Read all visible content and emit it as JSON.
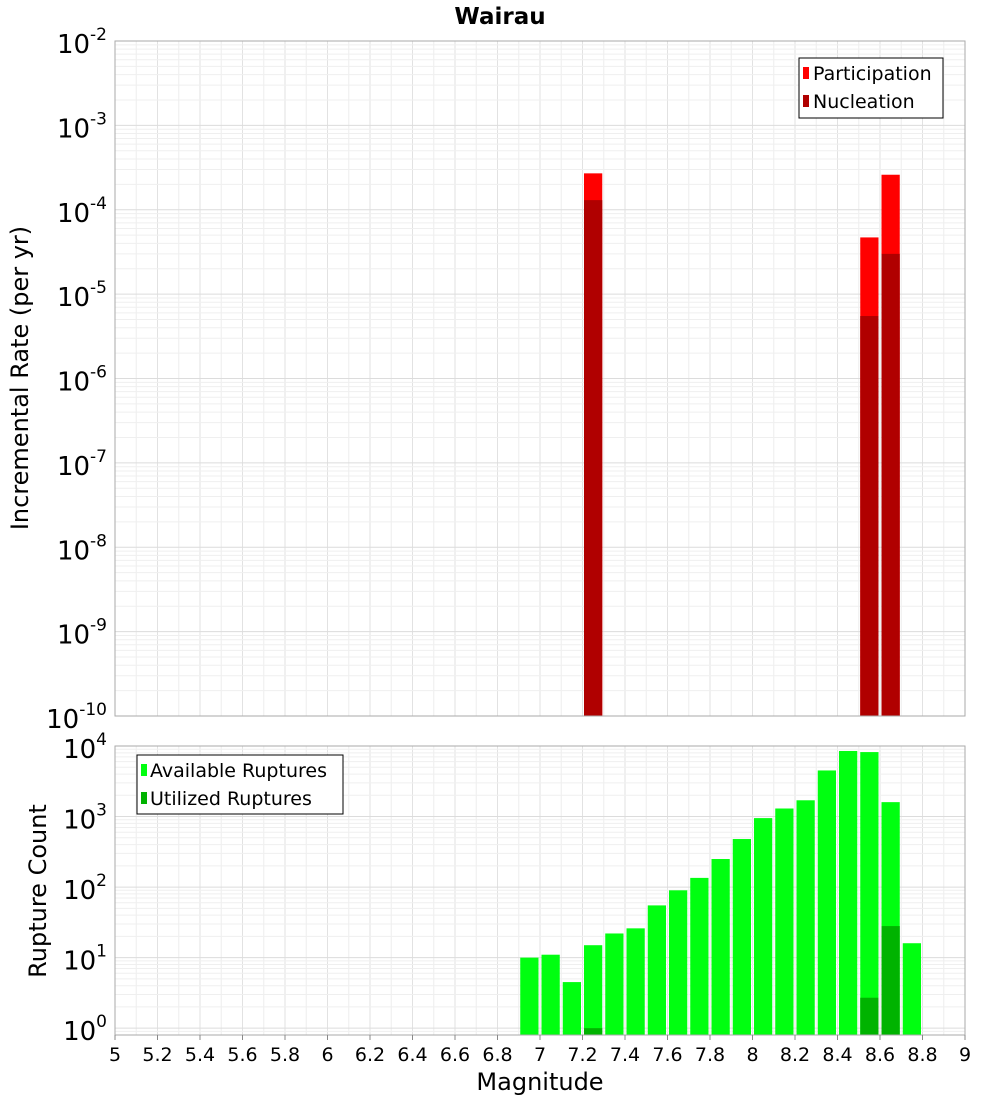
{
  "chart_data": [
    {
      "type": "bar",
      "title": "Wairau",
      "ylabel": "Incremental Rate (per yr)",
      "xlabel": "",
      "yscale": "log",
      "ylim": [
        1e-10,
        0.01
      ],
      "xlim": [
        5,
        9
      ],
      "bin_width": 0.1,
      "grid": true,
      "legend_position": "top-right",
      "y_ticks": [
        {
          "base": "10",
          "exp": "-10",
          "value": 1e-10
        },
        {
          "base": "10",
          "exp": "-9",
          "value": 1e-09
        },
        {
          "base": "10",
          "exp": "-8",
          "value": 1e-08
        },
        {
          "base": "10",
          "exp": "-7",
          "value": 1e-07
        },
        {
          "base": "10",
          "exp": "-6",
          "value": 1e-06
        },
        {
          "base": "10",
          "exp": "-5",
          "value": 1e-05
        },
        {
          "base": "10",
          "exp": "-4",
          "value": 0.0001
        },
        {
          "base": "10",
          "exp": "-3",
          "value": 0.001
        },
        {
          "base": "10",
          "exp": "-2",
          "value": 0.01
        }
      ],
      "series": [
        {
          "name": "Participation",
          "color": "#ff0000",
          "points": [
            {
              "x": 7.25,
              "y": 0.00027
            },
            {
              "x": 8.55,
              "y": 4.7e-05
            },
            {
              "x": 8.65,
              "y": 0.00026
            }
          ]
        },
        {
          "name": "Nucleation",
          "color": "#b00000",
          "points": [
            {
              "x": 7.25,
              "y": 0.00013
            },
            {
              "x": 8.55,
              "y": 5.5e-06
            },
            {
              "x": 8.65,
              "y": 3e-05
            }
          ]
        }
      ]
    },
    {
      "type": "bar",
      "title": "",
      "ylabel": "Rupture Count",
      "xlabel": "Magnitude",
      "yscale": "log",
      "ylim": [
        0.8,
        10000
      ],
      "xlim": [
        5,
        9
      ],
      "bin_width": 0.1,
      "grid": true,
      "legend_position": "top-left",
      "x_ticks": [
        "5",
        "5.2",
        "5.4",
        "5.6",
        "5.8",
        "6",
        "6.2",
        "6.4",
        "6.6",
        "6.8",
        "7",
        "7.2",
        "7.4",
        "7.6",
        "7.8",
        "8",
        "8.2",
        "8.4",
        "8.6",
        "8.8",
        "9"
      ],
      "y_ticks": [
        {
          "base": "10",
          "exp": "0",
          "value": 1
        },
        {
          "base": "10",
          "exp": "1",
          "value": 10
        },
        {
          "base": "10",
          "exp": "2",
          "value": 100
        },
        {
          "base": "10",
          "exp": "3",
          "value": 1000
        },
        {
          "base": "10",
          "exp": "4",
          "value": 10000
        }
      ],
      "series": [
        {
          "name": "Available Ruptures",
          "color": "#00ff10",
          "points": [
            {
              "x": 6.95,
              "y": 10
            },
            {
              "x": 7.05,
              "y": 11
            },
            {
              "x": 7.15,
              "y": 4.5
            },
            {
              "x": 7.25,
              "y": 15
            },
            {
              "x": 7.35,
              "y": 22
            },
            {
              "x": 7.45,
              "y": 26
            },
            {
              "x": 7.55,
              "y": 55
            },
            {
              "x": 7.65,
              "y": 90
            },
            {
              "x": 7.75,
              "y": 135
            },
            {
              "x": 7.85,
              "y": 250
            },
            {
              "x": 7.95,
              "y": 480
            },
            {
              "x": 8.05,
              "y": 950
            },
            {
              "x": 8.15,
              "y": 1300
            },
            {
              "x": 8.25,
              "y": 1700
            },
            {
              "x": 8.35,
              "y": 4500
            },
            {
              "x": 8.45,
              "y": 8500
            },
            {
              "x": 8.55,
              "y": 8200
            },
            {
              "x": 8.65,
              "y": 1600
            },
            {
              "x": 8.75,
              "y": 16
            }
          ]
        },
        {
          "name": "Utilized Ruptures",
          "color": "#00b300",
          "points": [
            {
              "x": 7.25,
              "y": 1
            },
            {
              "x": 8.55,
              "y": 2.7
            },
            {
              "x": 8.65,
              "y": 28
            }
          ]
        }
      ]
    }
  ]
}
